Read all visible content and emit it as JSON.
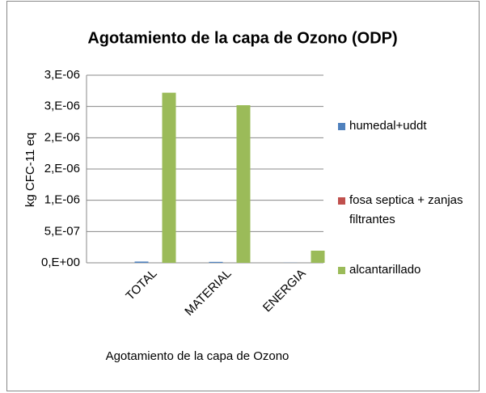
{
  "chart_data": {
    "type": "bar",
    "title": "Agotamiento de la capa de Ozono (ODP)",
    "y_label": "kg CFC-11 eq",
    "x_label": "Agotamiento de la capa de Ozono",
    "categories": [
      "TOTAL",
      "MATERIAL",
      "ENERGIA"
    ],
    "series": [
      {
        "name": "humedal+uddt",
        "color": "#4f81bd",
        "values": [
          2e-08,
          1.5e-08,
          2e-09
        ]
      },
      {
        "name": "fosa septica + zanjas filtrantes",
        "color": "#c0504d",
        "values": [
          0,
          0,
          0
        ]
      },
      {
        "name": "alcantarillado",
        "color": "#9bbb59",
        "values": [
          2.72e-06,
          2.52e-06,
          1.94e-07
        ]
      }
    ],
    "ylim": [
      0,
      3e-06
    ],
    "yticks": [
      {
        "value": 0,
        "label": "0,E+00"
      },
      {
        "value": 5e-07,
        "label": "5,E-07"
      },
      {
        "value": 1e-06,
        "label": "1,E-06"
      },
      {
        "value": 1.5e-06,
        "label": "2,E-06"
      },
      {
        "value": 2e-06,
        "label": "2,E-06"
      },
      {
        "value": 2.5e-06,
        "label": "3,E-06"
      },
      {
        "value": 3e-06,
        "label": "3,E-06"
      }
    ],
    "grid": true,
    "legend": "right"
  }
}
